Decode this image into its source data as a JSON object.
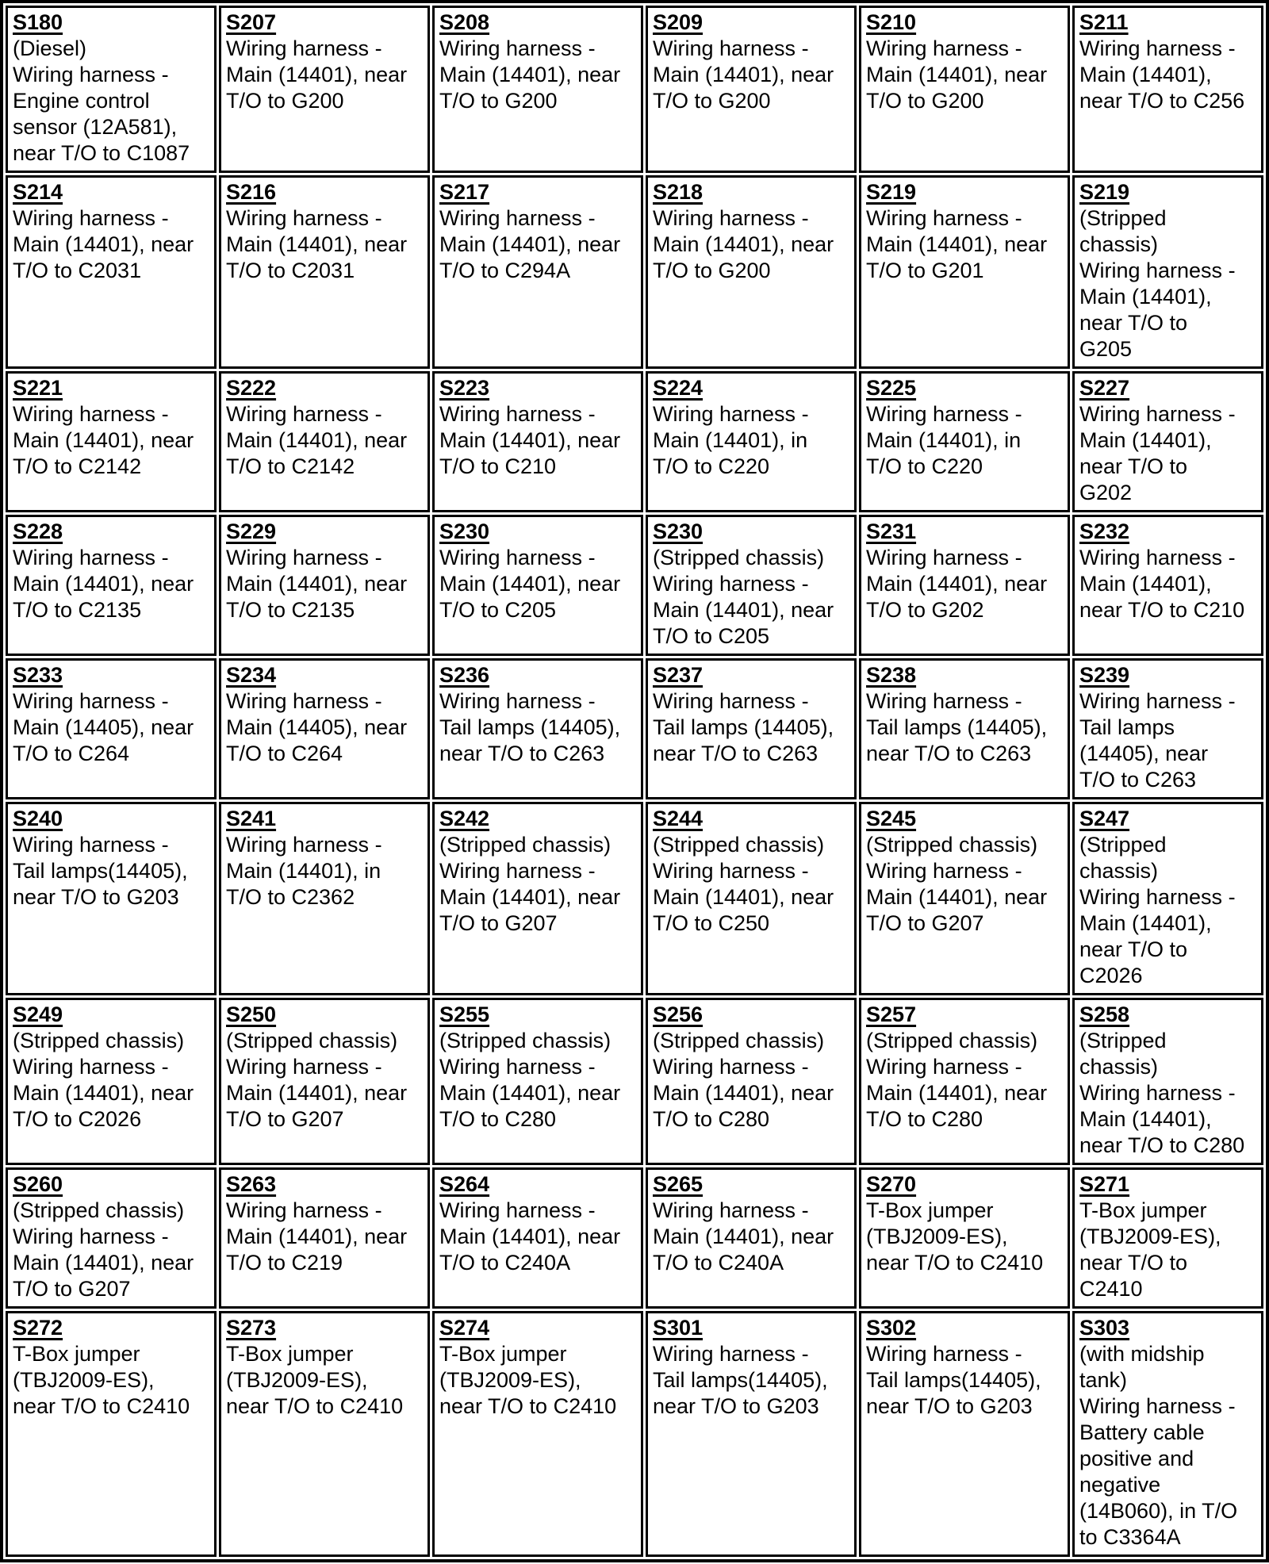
{
  "table": {
    "columns": 6,
    "rows": [
      [
        {
          "id": "S180",
          "lines": [
            "(Diesel)",
            "Wiring harness -",
            "Engine control",
            "sensor (12A581),",
            "near T/O to C1087"
          ]
        },
        {
          "id": "S207",
          "lines": [
            "Wiring harness -",
            "Main (14401), near",
            "T/O to G200"
          ]
        },
        {
          "id": "S208",
          "lines": [
            "Wiring harness -",
            "Main (14401), near",
            "T/O to G200"
          ]
        },
        {
          "id": "S209",
          "lines": [
            "Wiring harness -",
            "Main (14401), near",
            "T/O to G200"
          ]
        },
        {
          "id": "S210",
          "lines": [
            "Wiring harness -",
            "Main (14401), near",
            "T/O to G200"
          ]
        },
        {
          "id": "S211",
          "lines": [
            "Wiring harness -",
            "Main (14401),",
            "near T/O to C256"
          ]
        }
      ],
      [
        {
          "id": "S214",
          "lines": [
            "Wiring harness -",
            "Main (14401), near",
            "T/O to C2031"
          ]
        },
        {
          "id": "S216",
          "lines": [
            "Wiring harness -",
            "Main (14401), near",
            "T/O to C2031"
          ]
        },
        {
          "id": "S217",
          "lines": [
            "Wiring harness -",
            "Main (14401), near",
            "T/O to C294A"
          ]
        },
        {
          "id": "S218",
          "lines": [
            "Wiring harness -",
            "Main (14401), near",
            "T/O to G200"
          ]
        },
        {
          "id": "S219",
          "lines": [
            "Wiring harness -",
            "Main (14401), near",
            "T/O to G201"
          ]
        },
        {
          "id": "S219",
          "lines": [
            "(Stripped",
            "chassis)",
            "Wiring harness -",
            "Main (14401),",
            "near T/O to",
            "G205"
          ]
        }
      ],
      [
        {
          "id": "S221",
          "lines": [
            "Wiring harness -",
            "Main (14401), near",
            "T/O to C2142"
          ]
        },
        {
          "id": "S222",
          "lines": [
            "Wiring harness -",
            "Main (14401), near",
            "T/O to C2142"
          ]
        },
        {
          "id": "S223",
          "lines": [
            "Wiring harness -",
            "Main (14401), near",
            "T/O to C210"
          ]
        },
        {
          "id": "S224",
          "lines": [
            "Wiring harness -",
            "Main (14401), in",
            "T/O to C220"
          ]
        },
        {
          "id": "S225",
          "lines": [
            "Wiring harness -",
            "Main (14401), in",
            "T/O to C220"
          ]
        },
        {
          "id": "S227",
          "lines": [
            "Wiring harness -",
            "Main (14401),",
            "near T/O to",
            "G202"
          ]
        }
      ],
      [
        {
          "id": "S228",
          "lines": [
            "Wiring harness -",
            "Main (14401), near",
            "T/O to C2135"
          ]
        },
        {
          "id": "S229",
          "lines": [
            "Wiring harness -",
            "Main (14401), near",
            "T/O to C2135"
          ]
        },
        {
          "id": "S230",
          "lines": [
            "Wiring harness -",
            "Main (14401), near",
            "T/O to C205"
          ]
        },
        {
          "id": "S230",
          "lines": [
            "(Stripped chassis)",
            "Wiring harness -",
            "Main (14401), near",
            "T/O to C205"
          ]
        },
        {
          "id": "S231",
          "lines": [
            "Wiring harness -",
            "Main (14401), near",
            "T/O to G202"
          ]
        },
        {
          "id": "S232",
          "lines": [
            "Wiring harness -",
            "Main (14401),",
            "near T/O to C210"
          ]
        }
      ],
      [
        {
          "id": "S233",
          "lines": [
            "Wiring harness -",
            "Main (14405), near",
            "T/O to C264"
          ]
        },
        {
          "id": "S234",
          "lines": [
            "Wiring harness -",
            "Main (14405), near",
            "T/O to C264"
          ]
        },
        {
          "id": "S236",
          "lines": [
            "Wiring harness -",
            "Tail lamps (14405),",
            "near T/O to C263"
          ]
        },
        {
          "id": "S237",
          "lines": [
            "Wiring harness -",
            "Tail lamps (14405),",
            "near T/O to C263"
          ]
        },
        {
          "id": "S238",
          "lines": [
            "Wiring harness -",
            "Tail lamps (14405),",
            "near T/O to C263"
          ]
        },
        {
          "id": "S239",
          "lines": [
            "Wiring harness -",
            "Tail lamps",
            "(14405), near",
            "T/O to C263"
          ]
        }
      ],
      [
        {
          "id": "S240",
          "lines": [
            "Wiring harness -",
            "Tail lamps(14405),",
            "near T/O to G203"
          ]
        },
        {
          "id": "S241",
          "lines": [
            "Wiring harness -",
            "Main (14401), in",
            "T/O to C2362"
          ]
        },
        {
          "id": "S242",
          "lines": [
            "(Stripped chassis)",
            "Wiring harness -",
            "Main (14401), near",
            "T/O to G207"
          ]
        },
        {
          "id": "S244",
          "lines": [
            "(Stripped chassis)",
            "Wiring harness -",
            "Main (14401), near",
            "T/O to C250"
          ]
        },
        {
          "id": "S245",
          "lines": [
            "(Stripped chassis)",
            "Wiring harness -",
            "Main (14401), near",
            "T/O to G207"
          ]
        },
        {
          "id": "S247",
          "lines": [
            "(Stripped",
            "chassis)",
            "Wiring harness -",
            "Main (14401),",
            "near T/O to",
            "C2026"
          ]
        }
      ],
      [
        {
          "id": "S249",
          "lines": [
            "(Stripped chassis)",
            "Wiring harness -",
            "Main (14401), near",
            "T/O to C2026"
          ]
        },
        {
          "id": "S250",
          "lines": [
            "(Stripped chassis)",
            "Wiring harness -",
            "Main (14401), near",
            "T/O to G207"
          ]
        },
        {
          "id": "S255",
          "lines": [
            "(Stripped chassis)",
            "Wiring harness -",
            "Main (14401), near",
            "T/O to C280"
          ]
        },
        {
          "id": "S256",
          "lines": [
            "(Stripped chassis)",
            "Wiring harness -",
            "Main (14401), near",
            "T/O to C280"
          ]
        },
        {
          "id": "S257",
          "lines": [
            "(Stripped chassis)",
            "Wiring harness -",
            "Main (14401), near",
            "T/O to C280"
          ]
        },
        {
          "id": "S258",
          "lines": [
            "(Stripped",
            "chassis)",
            "Wiring harness -",
            "Main (14401),",
            "near T/O to C280"
          ]
        }
      ],
      [
        {
          "id": "S260",
          "lines": [
            "(Stripped chassis)",
            "Wiring harness -",
            "Main (14401), near",
            "T/O to G207"
          ]
        },
        {
          "id": "S263",
          "lines": [
            "Wiring harness -",
            "Main (14401), near",
            "T/O to C219"
          ]
        },
        {
          "id": "S264",
          "lines": [
            "Wiring harness -",
            "Main (14401), near",
            "T/O to C240A"
          ]
        },
        {
          "id": "S265",
          "lines": [
            "Wiring harness -",
            "Main (14401), near",
            "T/O to C240A"
          ]
        },
        {
          "id": "S270",
          "lines": [
            "T-Box jumper",
            "(TBJ2009-ES),",
            "near T/O to C2410"
          ]
        },
        {
          "id": "S271",
          "lines": [
            "T-Box jumper",
            "(TBJ2009-ES),",
            "near T/O to",
            "C2410"
          ]
        }
      ],
      [
        {
          "id": "S272",
          "lines": [
            "T-Box jumper",
            "(TBJ2009-ES),",
            "near T/O to C2410"
          ]
        },
        {
          "id": "S273",
          "lines": [
            "T-Box jumper",
            "(TBJ2009-ES),",
            "near T/O to C2410"
          ]
        },
        {
          "id": "S274",
          "lines": [
            "T-Box jumper",
            "(TBJ2009-ES),",
            "near T/O to C2410"
          ]
        },
        {
          "id": "S301",
          "lines": [
            "Wiring harness -",
            "Tail lamps(14405),",
            "near T/O to G203"
          ]
        },
        {
          "id": "S302",
          "lines": [
            "Wiring harness -",
            "Tail lamps(14405),",
            "near T/O to G203"
          ]
        },
        {
          "id": "S303",
          "lines": [
            "(with midship",
            "tank)",
            "Wiring harness -",
            "Battery cable",
            "positive and",
            "negative",
            "(14B060), in T/O",
            "to C3364A"
          ]
        }
      ]
    ]
  }
}
